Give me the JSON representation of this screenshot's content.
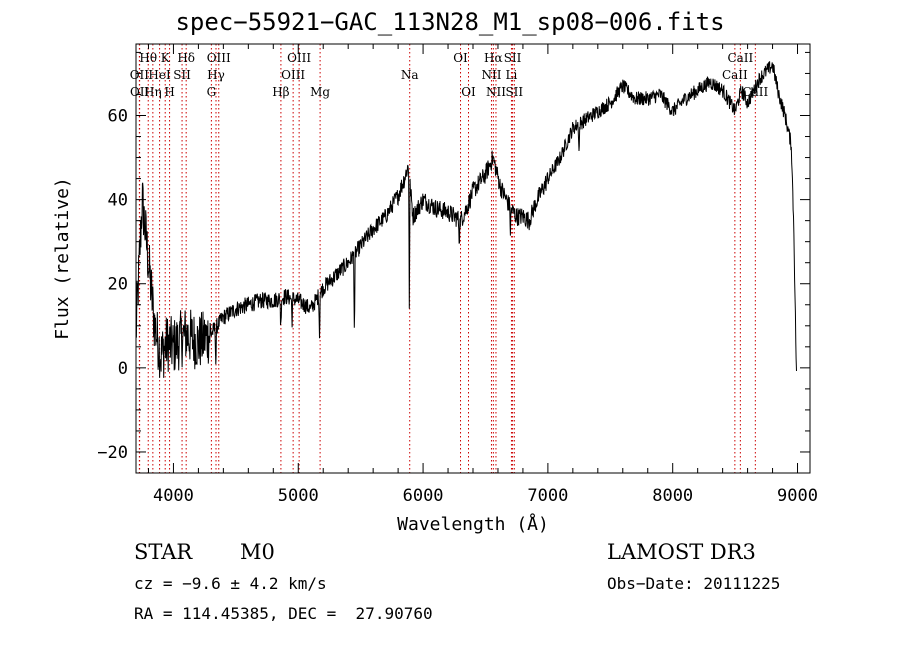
{
  "title": "spec−55921−GAC_113N28_M1_sp08−006.fits",
  "info": {
    "class": "STAR",
    "subclass": "M0",
    "survey": "LAMOST DR3",
    "cz": "cz = −9.6 ± 4.2 km/s",
    "obs_date": "Obs−Date: 20111225",
    "coords": "RA = 114.45385, DEC =  27.90760"
  },
  "chart_data": {
    "type": "line",
    "title": "spec−55921−GAC_113N28_M1_sp08−006.fits",
    "xlabel": "Wavelength (Å)",
    "ylabel": "Flux (relative)",
    "xlim": [
      3700,
      9100
    ],
    "ylim": [
      -25,
      77
    ],
    "x_ticks": [
      4000,
      5000,
      6000,
      7000,
      8000,
      9000
    ],
    "y_ticks": [
      -20,
      0,
      20,
      40,
      60
    ],
    "grid": false,
    "line_color": "#000000",
    "marker_color": "#cc0000",
    "continuum": [
      [
        3700,
        8
      ],
      [
        3750,
        40
      ],
      [
        3800,
        25
      ],
      [
        3850,
        10
      ],
      [
        3900,
        3
      ],
      [
        3950,
        6
      ],
      [
        4000,
        5
      ],
      [
        4100,
        8
      ],
      [
        4200,
        6
      ],
      [
        4300,
        8
      ],
      [
        4400,
        12
      ],
      [
        4500,
        14
      ],
      [
        4600,
        15
      ],
      [
        4700,
        16
      ],
      [
        4800,
        16
      ],
      [
        4900,
        17
      ],
      [
        5000,
        16
      ],
      [
        5100,
        14
      ],
      [
        5200,
        19
      ],
      [
        5300,
        22
      ],
      [
        5400,
        25
      ],
      [
        5500,
        29
      ],
      [
        5600,
        33
      ],
      [
        5700,
        36
      ],
      [
        5800,
        41
      ],
      [
        5850,
        45
      ],
      [
        5880,
        48
      ],
      [
        5920,
        36
      ],
      [
        6000,
        40
      ],
      [
        6100,
        38
      ],
      [
        6200,
        37
      ],
      [
        6300,
        35
      ],
      [
        6350,
        38
      ],
      [
        6400,
        42
      ],
      [
        6500,
        46
      ],
      [
        6560,
        50
      ],
      [
        6620,
        43
      ],
      [
        6700,
        38
      ],
      [
        6750,
        36
      ],
      [
        6800,
        36
      ],
      [
        6850,
        35
      ],
      [
        6900,
        39
      ],
      [
        7000,
        45
      ],
      [
        7100,
        50
      ],
      [
        7200,
        57
      ],
      [
        7300,
        59
      ],
      [
        7400,
        61
      ],
      [
        7500,
        63
      ],
      [
        7600,
        67
      ],
      [
        7700,
        64
      ],
      [
        7800,
        64
      ],
      [
        7900,
        65
      ],
      [
        8000,
        61
      ],
      [
        8100,
        64
      ],
      [
        8200,
        66
      ],
      [
        8300,
        68
      ],
      [
        8400,
        66
      ],
      [
        8500,
        61
      ],
      [
        8550,
        66
      ],
      [
        8600,
        63
      ],
      [
        8700,
        69
      ],
      [
        8800,
        72
      ],
      [
        8850,
        65
      ],
      [
        8900,
        60
      ],
      [
        8950,
        53
      ],
      [
        8970,
        34
      ],
      [
        8990,
        0
      ],
      [
        9000,
        0
      ]
    ],
    "absorption_lines": [
      {
        "x": 5890,
        "depth": 30
      },
      {
        "x": 5170,
        "depth": 10
      },
      {
        "x": 6290,
        "depth": 5
      },
      {
        "x": 7250,
        "depth": 8
      },
      {
        "x": 4340,
        "depth": 10
      },
      {
        "x": 4860,
        "depth": 8
      },
      {
        "x": 4950,
        "depth": 6
      },
      {
        "x": 5450,
        "depth": 20
      },
      {
        "x": 6700,
        "depth": 6
      }
    ],
    "line_markers": [
      {
        "label": "Hθ",
        "x": 3798,
        "row": 0,
        "ha": "center"
      },
      {
        "label": "OII",
        "x": 3727,
        "row": 1,
        "ha": "center"
      },
      {
        "label": "OII",
        "x": 3729,
        "row": 2,
        "ha": "center"
      },
      {
        "label": "K",
        "x": 3934,
        "row": 0,
        "ha": "center"
      },
      {
        "label": "HeI",
        "x": 3889,
        "row": 1,
        "ha": "center"
      },
      {
        "label": "Hη",
        "x": 3835,
        "row": 2,
        "ha": "center"
      },
      {
        "label": "SII",
        "x": 4069,
        "row": 1,
        "ha": "center"
      },
      {
        "label": "H",
        "x": 3969,
        "row": 2,
        "ha": "center"
      },
      {
        "label": "Hδ",
        "x": 4102,
        "row": 0,
        "ha": "center"
      },
      {
        "label": "OIII",
        "x": 4363,
        "row": 0,
        "ha": "center"
      },
      {
        "label": "Hγ",
        "x": 4341,
        "row": 1,
        "ha": "center"
      },
      {
        "label": "G",
        "x": 4304,
        "row": 2,
        "ha": "center"
      },
      {
        "label": "OIII",
        "x": 5007,
        "row": 0,
        "ha": "center"
      },
      {
        "label": "OIII",
        "x": 4959,
        "row": 1,
        "ha": "center"
      },
      {
        "label": "Hβ",
        "x": 4861,
        "row": 2,
        "ha": "center"
      },
      {
        "label": "Mg",
        "x": 5175,
        "row": 2,
        "ha": "center"
      },
      {
        "label": "Na",
        "x": 5893,
        "row": 1,
        "ha": "center"
      },
      {
        "label": "OI",
        "x": 6300,
        "row": 0,
        "ha": "center"
      },
      {
        "label": "OI",
        "x": 6364,
        "row": 2,
        "ha": "center"
      },
      {
        "label": "Hα",
        "x": 6563,
        "row": 0,
        "ha": "center"
      },
      {
        "label": "SII",
        "x": 6717,
        "row": 0,
        "ha": "center"
      },
      {
        "label": "NII",
        "x": 6548,
        "row": 1,
        "ha": "center"
      },
      {
        "label": "Li",
        "x": 6708,
        "row": 1,
        "ha": "center"
      },
      {
        "label": "NII",
        "x": 6584,
        "row": 2,
        "ha": "center"
      },
      {
        "label": "SII",
        "x": 6731,
        "row": 2,
        "ha": "center"
      },
      {
        "label": "CaII",
        "x": 8542,
        "row": 0,
        "ha": "center"
      },
      {
        "label": "CaII",
        "x": 8498,
        "row": 1,
        "ha": "center"
      },
      {
        "label": "CaII",
        "x": 8662,
        "row": 2,
        "ha": "center"
      }
    ]
  }
}
